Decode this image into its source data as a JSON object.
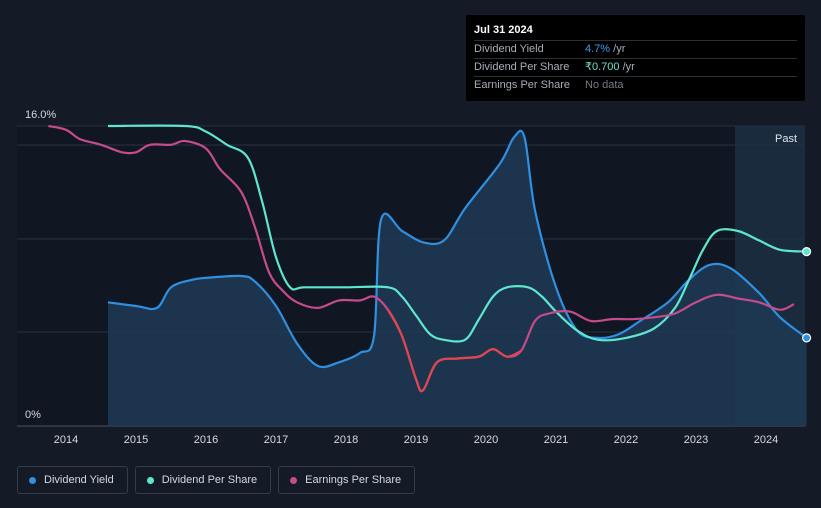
{
  "tooltip": {
    "date": "Jul 31 2024",
    "rows": [
      {
        "label": "Dividend Yield",
        "value": "4.7%",
        "unit": " /yr"
      },
      {
        "label": "Dividend Per Share",
        "value": "₹0.700",
        "unit": " /yr"
      },
      {
        "label": "Earnings Per Share",
        "value": "No data",
        "unit": ""
      }
    ]
  },
  "legend": [
    {
      "label": "Dividend Yield",
      "color": "#2f8fe0"
    },
    {
      "label": "Dividend Per Share",
      "color": "#5ee6cf"
    },
    {
      "label": "Earnings Per Share",
      "color": "#c54b8c"
    }
  ],
  "chart_data": {
    "type": "line",
    "x_ticks": [
      "2014",
      "2015",
      "2016",
      "2017",
      "2018",
      "2019",
      "2020",
      "2021",
      "2022",
      "2023",
      "2024"
    ],
    "y_tick_labels": [
      "16.0%",
      "0%"
    ],
    "ylim": [
      0,
      16
    ],
    "past_label": "Past",
    "colors": {
      "dividend_yield": "#2f8fe0",
      "dividend_per_share": "#5ee6cf",
      "earnings_per_share": "#c54b8c",
      "earnings_negative": "#e0464e",
      "past_band": "#1d3347"
    },
    "series": [
      {
        "name": "Dividend Yield",
        "key": "dividend_yield",
        "unit": "%",
        "points": [
          [
            2014.6,
            6.6
          ],
          [
            2015.0,
            6.4
          ],
          [
            2015.3,
            6.3
          ],
          [
            2015.5,
            7.4
          ],
          [
            2015.8,
            7.8
          ],
          [
            2016.0,
            7.9
          ],
          [
            2016.5,
            8.0
          ],
          [
            2016.7,
            7.7
          ],
          [
            2017.0,
            6.4
          ],
          [
            2017.3,
            4.4
          ],
          [
            2017.6,
            3.2
          ],
          [
            2017.9,
            3.4
          ],
          [
            2018.2,
            3.9
          ],
          [
            2018.4,
            4.8
          ],
          [
            2018.5,
            11.0
          ],
          [
            2018.8,
            10.4
          ],
          [
            2019.1,
            9.8
          ],
          [
            2019.4,
            9.9
          ],
          [
            2019.7,
            11.6
          ],
          [
            2020.2,
            14.0
          ],
          [
            2020.4,
            15.4
          ],
          [
            2020.55,
            15.4
          ],
          [
            2020.7,
            11.5
          ],
          [
            2021.0,
            7.4
          ],
          [
            2021.3,
            5.1
          ],
          [
            2021.6,
            4.7
          ],
          [
            2021.9,
            4.9
          ],
          [
            2022.2,
            5.6
          ],
          [
            2022.6,
            6.6
          ],
          [
            2022.9,
            7.8
          ],
          [
            2023.2,
            8.6
          ],
          [
            2023.5,
            8.4
          ],
          [
            2023.9,
            7.1
          ],
          [
            2024.2,
            5.8
          ],
          [
            2024.58,
            4.7
          ]
        ]
      },
      {
        "name": "Dividend Per Share",
        "key": "dividend_per_share",
        "unit": "₹",
        "points": [
          [
            2014.6,
            16.0
          ],
          [
            2015.7,
            16.0
          ],
          [
            2016.0,
            15.7
          ],
          [
            2016.3,
            15.0
          ],
          [
            2016.6,
            14.3
          ],
          [
            2016.8,
            12.0
          ],
          [
            2017.0,
            9.0
          ],
          [
            2017.2,
            7.4
          ],
          [
            2017.4,
            7.4
          ],
          [
            2018.0,
            7.4
          ],
          [
            2018.6,
            7.4
          ],
          [
            2018.8,
            6.9
          ],
          [
            2019.0,
            5.9
          ],
          [
            2019.2,
            4.9
          ],
          [
            2019.4,
            4.6
          ],
          [
            2019.7,
            4.6
          ],
          [
            2019.9,
            5.7
          ],
          [
            2020.1,
            6.9
          ],
          [
            2020.3,
            7.4
          ],
          [
            2020.6,
            7.4
          ],
          [
            2020.8,
            6.9
          ],
          [
            2021.0,
            6.1
          ],
          [
            2021.3,
            5.1
          ],
          [
            2021.6,
            4.6
          ],
          [
            2022.0,
            4.7
          ],
          [
            2022.4,
            5.2
          ],
          [
            2022.7,
            6.3
          ],
          [
            2022.9,
            7.8
          ],
          [
            2023.1,
            9.4
          ],
          [
            2023.3,
            10.4
          ],
          [
            2023.6,
            10.4
          ],
          [
            2023.9,
            9.9
          ],
          [
            2024.2,
            9.4
          ],
          [
            2024.58,
            9.3
          ]
        ]
      },
      {
        "name": "Earnings Per Share",
        "key": "earnings_per_share",
        "unit": "₹",
        "points": [
          [
            2013.75,
            16.0
          ],
          [
            2014.0,
            15.8
          ],
          [
            2014.2,
            15.3
          ],
          [
            2014.5,
            15.0
          ],
          [
            2014.8,
            14.6
          ],
          [
            2015.0,
            14.6
          ],
          [
            2015.2,
            15.0
          ],
          [
            2015.5,
            15.0
          ],
          [
            2015.7,
            15.2
          ],
          [
            2016.0,
            14.8
          ],
          [
            2016.2,
            13.7
          ],
          [
            2016.5,
            12.5
          ],
          [
            2016.7,
            10.6
          ],
          [
            2016.9,
            8.2
          ],
          [
            2017.1,
            7.2
          ],
          [
            2017.3,
            6.6
          ],
          [
            2017.6,
            6.3
          ],
          [
            2017.9,
            6.7
          ],
          [
            2018.2,
            6.7
          ],
          [
            2018.4,
            6.9
          ],
          [
            2018.6,
            6.2
          ],
          [
            2018.8,
            4.8
          ],
          [
            2019.0,
            2.5
          ],
          [
            2019.1,
            1.9
          ],
          [
            2019.3,
            3.4
          ],
          [
            2019.6,
            3.6
          ],
          [
            2019.9,
            3.7
          ],
          [
            2020.1,
            4.1
          ],
          [
            2020.3,
            3.7
          ],
          [
            2020.5,
            4.0
          ],
          [
            2020.7,
            5.6
          ],
          [
            2020.9,
            6.0
          ],
          [
            2021.2,
            6.1
          ],
          [
            2021.5,
            5.6
          ],
          [
            2021.8,
            5.7
          ],
          [
            2022.1,
            5.7
          ],
          [
            2022.4,
            5.8
          ],
          [
            2022.7,
            6.0
          ],
          [
            2023.0,
            6.6
          ],
          [
            2023.3,
            7.0
          ],
          [
            2023.6,
            6.8
          ],
          [
            2023.9,
            6.6
          ],
          [
            2024.2,
            6.2
          ],
          [
            2024.4,
            6.5
          ]
        ]
      }
    ]
  }
}
